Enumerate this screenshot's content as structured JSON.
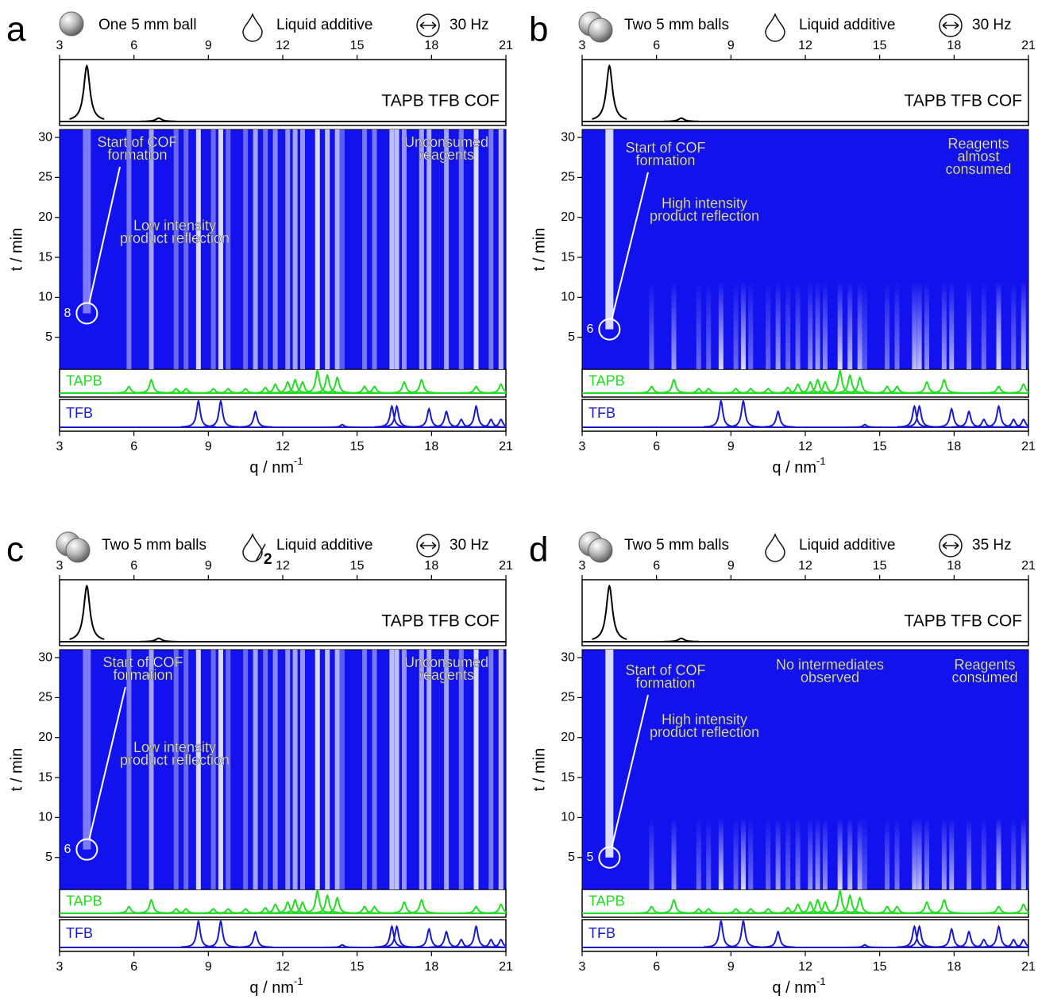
{
  "chart_data": [
    {
      "type": "heatmap",
      "label": "a",
      "conditions": {
        "balls": "One 5 mm ball",
        "liquid": "Liquid additive",
        "frequency": "30 Hz"
      },
      "xlim": [
        3,
        21
      ],
      "xticks": [
        3,
        6,
        9,
        12,
        15,
        18,
        21
      ],
      "ylim": [
        1,
        31
      ],
      "yticks": [
        5,
        10,
        15,
        20,
        25,
        30
      ],
      "xlabel": "q / nm",
      "xlabel_sup": "-1",
      "ylabel": "t / min",
      "onset": 8,
      "stripe_top": 31,
      "heatmap_color": "#1212ee",
      "cof_streak_color": "#8e8eff",
      "annotations": [
        [
          "Start of COF",
          "formation"
        ],
        [
          "Low intensity",
          "product reflection"
        ],
        [
          "Unconsumed",
          "reagents"
        ]
      ],
      "series": [
        {
          "name": "TAPB TFB COF",
          "color": "#000000",
          "q": [
            4.1,
            7.0
          ],
          "values": [
            1,
            0.06
          ]
        },
        {
          "name": "TAPB",
          "color": "#22dd22",
          "q": [
            5.8,
            6.7,
            7.7,
            8.1,
            9.2,
            9.8,
            10.5,
            11.3,
            11.7,
            12.2,
            12.5,
            12.8,
            13.4,
            13.8,
            14.2,
            15.3,
            15.7,
            16.9,
            17.6,
            19.8,
            20.8
          ],
          "values": [
            0.3,
            0.6,
            0.2,
            0.2,
            0.2,
            0.2,
            0.2,
            0.25,
            0.4,
            0.5,
            0.6,
            0.5,
            1,
            0.8,
            0.7,
            0.3,
            0.3,
            0.5,
            0.6,
            0.3,
            0.4
          ]
        },
        {
          "name": "TFB",
          "color": "#1a1acc",
          "q": [
            8.6,
            9.5,
            10.9,
            14.4,
            16.4,
            16.6,
            17.9,
            18.6,
            19.2,
            19.8,
            20.4,
            20.8
          ],
          "values": [
            1,
            1,
            0.6,
            0.1,
            0.8,
            0.8,
            0.7,
            0.6,
            0.3,
            0.8,
            0.3,
            0.3
          ]
        }
      ]
    },
    {
      "type": "heatmap",
      "label": "b",
      "conditions": {
        "balls": "Two 5 mm balls",
        "liquid": "Liquid additive",
        "frequency": "30 Hz"
      },
      "xlim": [
        3,
        21
      ],
      "xticks": [
        3,
        6,
        9,
        12,
        15,
        18,
        21
      ],
      "ylim": [
        1,
        31
      ],
      "yticks": [
        5,
        10,
        15,
        20,
        25,
        30
      ],
      "xlabel": "q / nm",
      "xlabel_sup": "-1",
      "ylabel": "t / min",
      "onset": 6,
      "stripe_top": 12,
      "heatmap_color": "#1212ee",
      "cof_streak_color": "#ffffff",
      "annotations": [
        [
          "Start of COF",
          "formation"
        ],
        [
          "High intensity",
          "product reflection"
        ],
        [
          "Reagents",
          "almost",
          "consumed"
        ]
      ],
      "series": [
        {
          "name": "TAPB TFB COF",
          "color": "#000000",
          "q": [
            4.1,
            7.0
          ],
          "values": [
            1,
            0.06
          ]
        },
        {
          "name": "TAPB",
          "color": "#22dd22",
          "q": [
            5.8,
            6.7,
            7.7,
            8.1,
            9.2,
            9.8,
            10.5,
            11.3,
            11.7,
            12.2,
            12.5,
            12.8,
            13.4,
            13.8,
            14.2,
            15.3,
            15.7,
            16.9,
            17.6,
            19.8,
            20.8
          ],
          "values": [
            0.3,
            0.6,
            0.2,
            0.2,
            0.2,
            0.2,
            0.2,
            0.25,
            0.4,
            0.5,
            0.6,
            0.5,
            1,
            0.8,
            0.7,
            0.3,
            0.3,
            0.5,
            0.6,
            0.3,
            0.4
          ]
        },
        {
          "name": "TFB",
          "color": "#1a1acc",
          "q": [
            8.6,
            9.5,
            10.9,
            14.4,
            16.4,
            16.6,
            17.9,
            18.6,
            19.2,
            19.8,
            20.4,
            20.8
          ],
          "values": [
            1,
            1,
            0.6,
            0.1,
            0.8,
            0.8,
            0.7,
            0.6,
            0.3,
            0.8,
            0.3,
            0.3
          ]
        }
      ]
    },
    {
      "type": "heatmap",
      "label": "c",
      "conditions": {
        "balls": "Two 5 mm balls",
        "liquid_fraction": "2",
        "liquid": "Liquid additive",
        "frequency": "30 Hz"
      },
      "xlim": [
        3,
        21
      ],
      "xticks": [
        3,
        6,
        9,
        12,
        15,
        18,
        21
      ],
      "ylim": [
        1,
        31
      ],
      "yticks": [
        5,
        10,
        15,
        20,
        25,
        30
      ],
      "xlabel": "q / nm",
      "xlabel_sup": "-1",
      "ylabel": "t / min",
      "onset": 6,
      "stripe_top": 31,
      "heatmap_color": "#1212ee",
      "cof_streak_color": "#8e8eff",
      "annotations": [
        [
          "Start of COF",
          "formation"
        ],
        [
          "Low intensity",
          "product reflection"
        ],
        [
          "Unconsumed",
          "reagents"
        ]
      ],
      "series": [
        {
          "name": "TAPB TFB COF",
          "color": "#000000",
          "q": [
            4.1,
            7.0
          ],
          "values": [
            1,
            0.06
          ]
        },
        {
          "name": "TAPB",
          "color": "#22dd22",
          "q": [
            5.8,
            6.7,
            7.7,
            8.1,
            9.2,
            9.8,
            10.5,
            11.3,
            11.7,
            12.2,
            12.5,
            12.8,
            13.4,
            13.8,
            14.2,
            15.3,
            15.7,
            16.9,
            17.6,
            19.8,
            20.8
          ],
          "values": [
            0.3,
            0.6,
            0.2,
            0.2,
            0.2,
            0.2,
            0.2,
            0.25,
            0.4,
            0.5,
            0.6,
            0.5,
            1,
            0.8,
            0.7,
            0.3,
            0.3,
            0.5,
            0.6,
            0.3,
            0.4
          ]
        },
        {
          "name": "TFB",
          "color": "#1a1acc",
          "q": [
            8.6,
            9.5,
            10.9,
            14.4,
            16.4,
            16.6,
            17.9,
            18.6,
            19.2,
            19.8,
            20.4,
            20.8
          ],
          "values": [
            1,
            1,
            0.6,
            0.1,
            0.8,
            0.8,
            0.7,
            0.6,
            0.3,
            0.8,
            0.3,
            0.3
          ]
        }
      ]
    },
    {
      "type": "heatmap",
      "label": "d",
      "conditions": {
        "balls": "Two 5 mm balls",
        "liquid": "Liquid additive",
        "frequency": "35 Hz"
      },
      "xlim": [
        3,
        21
      ],
      "xticks": [
        3,
        6,
        9,
        12,
        15,
        18,
        21
      ],
      "ylim": [
        1,
        31
      ],
      "yticks": [
        5,
        10,
        15,
        20,
        25,
        30
      ],
      "xlabel": "q / nm",
      "xlabel_sup": "-1",
      "ylabel": "t / min",
      "onset": 5,
      "stripe_top": 10,
      "heatmap_color": "#1212ee",
      "cof_streak_color": "#ffffff",
      "annotations": [
        [
          "Start of COF",
          "formation"
        ],
        [
          "High intensity",
          "product reflection"
        ],
        [
          "No intermediates",
          "observed"
        ],
        [
          "Reagents",
          "consumed"
        ]
      ],
      "series": [
        {
          "name": "TAPB TFB COF",
          "color": "#000000",
          "q": [
            4.1,
            7.0
          ],
          "values": [
            1,
            0.06
          ]
        },
        {
          "name": "TAPB",
          "color": "#22dd22",
          "q": [
            5.8,
            6.7,
            7.7,
            8.1,
            9.2,
            9.8,
            10.5,
            11.3,
            11.7,
            12.2,
            12.5,
            12.8,
            13.4,
            13.8,
            14.2,
            15.3,
            15.7,
            16.9,
            17.6,
            19.8,
            20.8
          ],
          "values": [
            0.3,
            0.6,
            0.2,
            0.2,
            0.2,
            0.2,
            0.2,
            0.25,
            0.4,
            0.5,
            0.6,
            0.5,
            1,
            0.8,
            0.7,
            0.3,
            0.3,
            0.5,
            0.6,
            0.3,
            0.4
          ]
        },
        {
          "name": "TFB",
          "color": "#1a1acc",
          "q": [
            8.6,
            9.5,
            10.9,
            14.4,
            16.4,
            16.6,
            17.9,
            18.6,
            19.2,
            19.8,
            20.4,
            20.8
          ],
          "values": [
            1,
            1,
            0.6,
            0.1,
            0.8,
            0.8,
            0.7,
            0.6,
            0.3,
            0.8,
            0.3,
            0.3
          ]
        }
      ]
    }
  ]
}
